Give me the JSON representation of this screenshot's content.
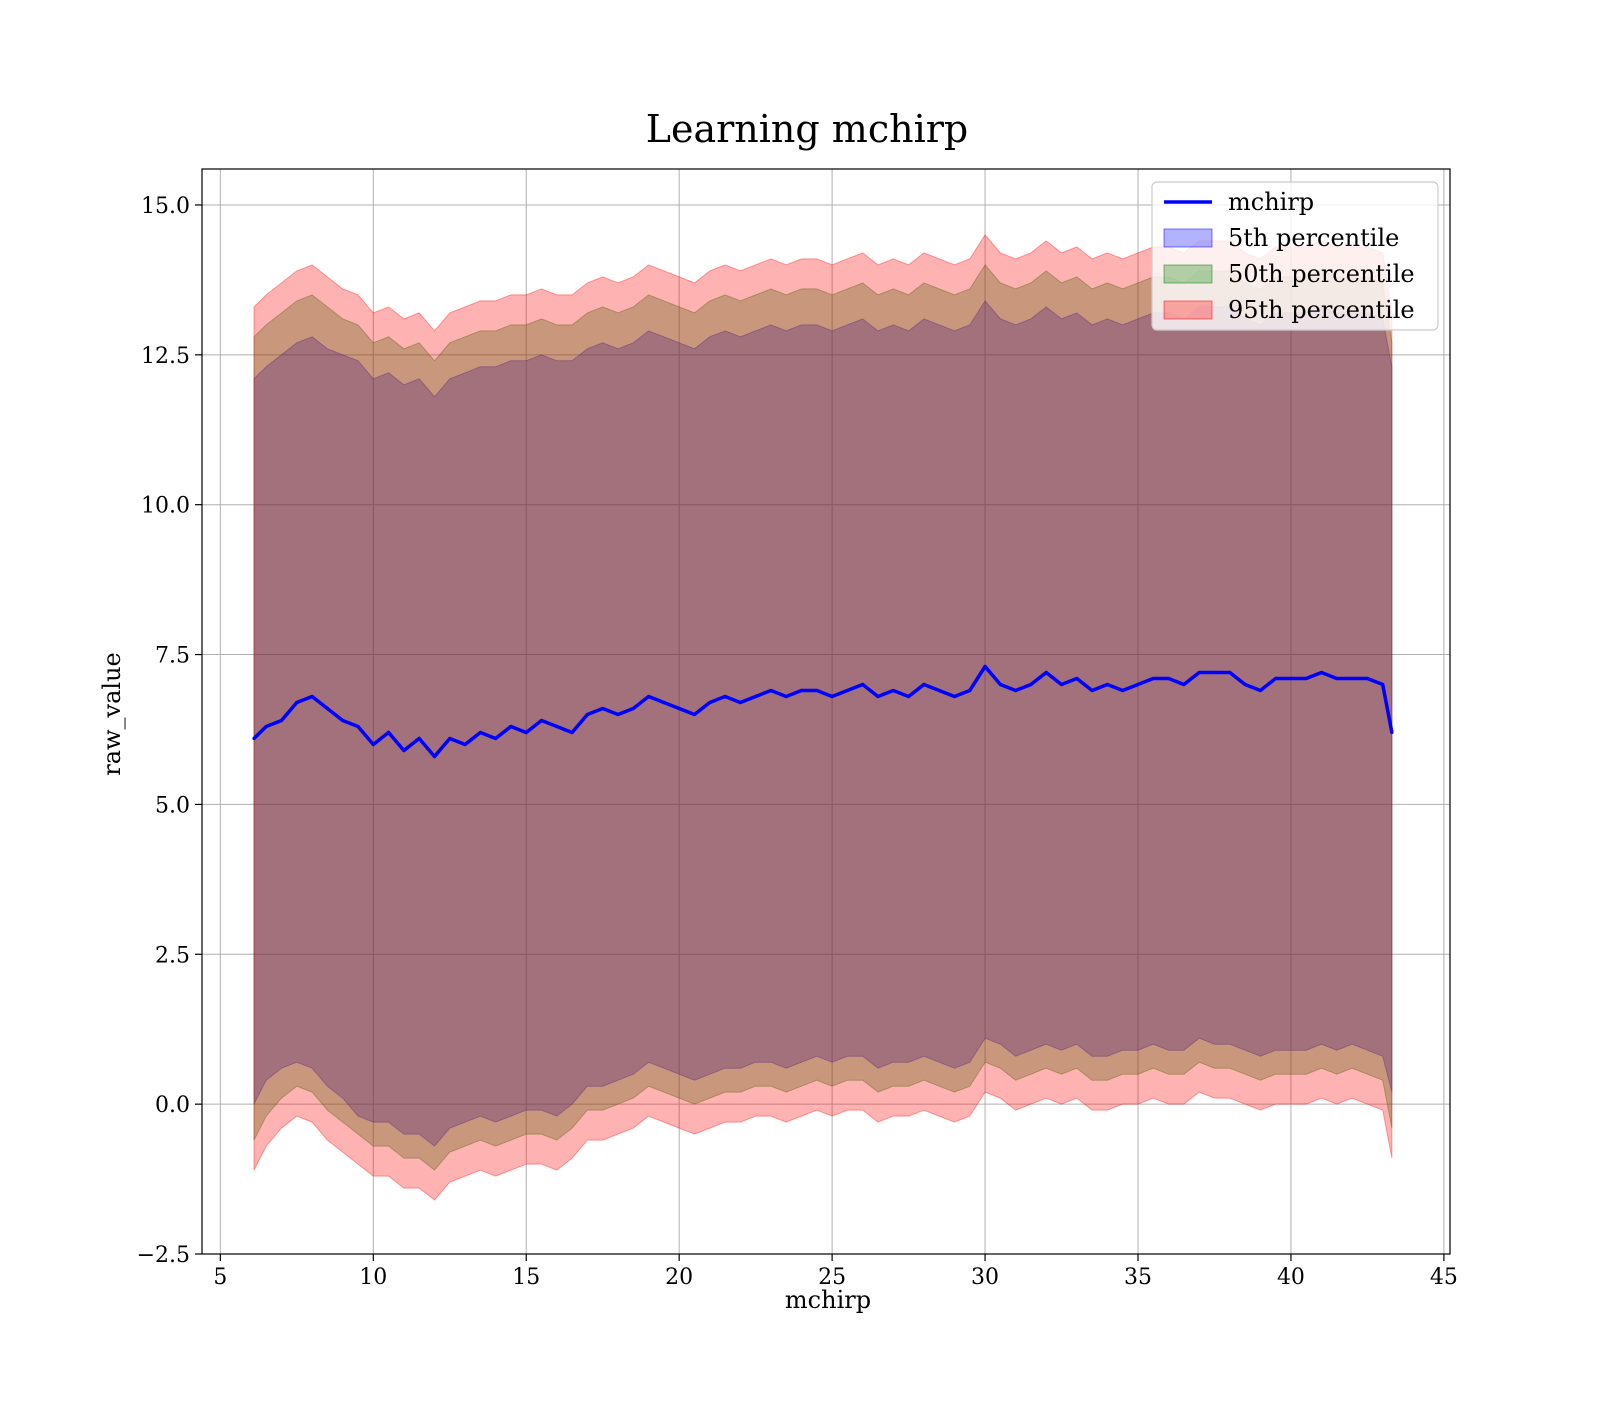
{
  "chart_data": {
    "type": "line",
    "title": "Learning mchirp",
    "xlabel": "mchirp",
    "ylabel": "raw_value",
    "xlim": [
      4.4,
      45.2
    ],
    "ylim": [
      -2.5,
      15.6
    ],
    "xticks": [
      5,
      10,
      15,
      20,
      25,
      30,
      35,
      40,
      45
    ],
    "xtick_labels": [
      "5",
      "10",
      "15",
      "20",
      "25",
      "30",
      "35",
      "40",
      "45"
    ],
    "yticks": [
      -2.5,
      0.0,
      2.5,
      5.0,
      7.5,
      10.0,
      12.5,
      15.0
    ],
    "ytick_labels": [
      "−2.5",
      "0.0",
      "2.5",
      "5.0",
      "7.5",
      "10.0",
      "12.5",
      "15.0"
    ],
    "grid": true,
    "legend_position": "top-right",
    "legend": [
      "mchirp",
      "5th percentile",
      "50th percentile",
      "95th percentile"
    ],
    "colors": {
      "line": "#0000ff",
      "band_5th": "#0000ff",
      "band_50th": "#008000",
      "band_95th": "#ff0000",
      "band_alpha": 0.3,
      "grid": "#b0b0b0"
    },
    "x": [
      6.1,
      6.5,
      7.0,
      7.5,
      8.0,
      8.5,
      9.0,
      9.5,
      10.0,
      10.5,
      11.0,
      11.5,
      12.0,
      12.5,
      13.0,
      13.5,
      14.0,
      14.5,
      15.0,
      15.5,
      16.0,
      16.5,
      17.0,
      17.5,
      18.0,
      18.5,
      19.0,
      19.5,
      20.0,
      20.5,
      21.0,
      21.5,
      22.0,
      22.5,
      23.0,
      23.5,
      24.0,
      24.5,
      25.0,
      25.5,
      26.0,
      26.5,
      27.0,
      27.5,
      28.0,
      28.5,
      29.0,
      29.5,
      30.0,
      30.5,
      31.0,
      31.5,
      32.0,
      32.5,
      33.0,
      33.5,
      34.0,
      34.5,
      35.0,
      35.5,
      36.0,
      36.5,
      37.0,
      37.5,
      38.0,
      38.5,
      39.0,
      39.5,
      40.0,
      40.5,
      41.0,
      41.5,
      42.0,
      42.5,
      43.0,
      43.3
    ],
    "series": [
      {
        "name": "mchirp",
        "values": [
          6.1,
          6.3,
          6.4,
          6.7,
          6.8,
          6.6,
          6.4,
          6.3,
          6.0,
          6.2,
          5.9,
          6.1,
          5.8,
          6.1,
          6.0,
          6.2,
          6.1,
          6.3,
          6.2,
          6.4,
          6.3,
          6.2,
          6.5,
          6.6,
          6.5,
          6.6,
          6.8,
          6.7,
          6.6,
          6.5,
          6.7,
          6.8,
          6.7,
          6.8,
          6.9,
          6.8,
          6.9,
          6.9,
          6.8,
          6.9,
          7.0,
          6.8,
          6.9,
          6.8,
          7.0,
          6.9,
          6.8,
          6.9,
          7.3,
          7.0,
          6.9,
          7.0,
          7.2,
          7.0,
          7.1,
          6.9,
          7.0,
          6.9,
          7.0,
          7.1,
          7.1,
          7.0,
          7.2,
          7.2,
          7.2,
          7.0,
          6.9,
          7.1,
          7.1,
          7.1,
          7.2,
          7.1,
          7.1,
          7.1,
          7.0,
          6.2
        ]
      },
      {
        "name": "5th percentile",
        "lower": [
          0.0,
          0.4,
          0.6,
          0.7,
          0.6,
          0.3,
          0.1,
          -0.2,
          -0.3,
          -0.3,
          -0.5,
          -0.5,
          -0.7,
          -0.4,
          -0.3,
          -0.2,
          -0.3,
          -0.2,
          -0.1,
          -0.1,
          -0.2,
          0.0,
          0.3,
          0.3,
          0.4,
          0.5,
          0.7,
          0.6,
          0.5,
          0.4,
          0.5,
          0.6,
          0.6,
          0.7,
          0.7,
          0.6,
          0.7,
          0.8,
          0.7,
          0.8,
          0.8,
          0.6,
          0.7,
          0.7,
          0.8,
          0.7,
          0.6,
          0.7,
          1.1,
          1.0,
          0.8,
          0.9,
          1.0,
          0.9,
          1.0,
          0.8,
          0.8,
          0.9,
          0.9,
          1.0,
          0.9,
          0.9,
          1.1,
          1.0,
          1.0,
          0.9,
          0.8,
          0.9,
          0.9,
          0.9,
          1.0,
          0.9,
          1.0,
          0.9,
          0.8,
          0.2
        ],
        "upper": [
          12.1,
          12.3,
          12.5,
          12.7,
          12.8,
          12.6,
          12.5,
          12.4,
          12.1,
          12.2,
          12.0,
          12.1,
          11.8,
          12.1,
          12.2,
          12.3,
          12.3,
          12.4,
          12.4,
          12.5,
          12.4,
          12.4,
          12.6,
          12.7,
          12.6,
          12.7,
          12.9,
          12.8,
          12.7,
          12.6,
          12.8,
          12.9,
          12.8,
          12.9,
          13.0,
          12.9,
          13.0,
          13.0,
          12.9,
          13.0,
          13.1,
          12.9,
          13.0,
          12.9,
          13.1,
          13.0,
          12.9,
          13.0,
          13.4,
          13.1,
          13.0,
          13.1,
          13.3,
          13.1,
          13.2,
          13.0,
          13.1,
          13.0,
          13.1,
          13.2,
          13.2,
          13.1,
          13.3,
          13.3,
          13.3,
          13.1,
          13.0,
          13.2,
          13.2,
          13.2,
          13.3,
          13.2,
          13.2,
          13.2,
          13.1,
          12.3
        ]
      },
      {
        "name": "50th percentile",
        "lower": [
          -0.6,
          -0.2,
          0.1,
          0.3,
          0.2,
          -0.1,
          -0.3,
          -0.5,
          -0.7,
          -0.7,
          -0.9,
          -0.9,
          -1.1,
          -0.8,
          -0.7,
          -0.6,
          -0.7,
          -0.6,
          -0.5,
          -0.5,
          -0.6,
          -0.4,
          -0.1,
          -0.1,
          0.0,
          0.1,
          0.3,
          0.2,
          0.1,
          0.0,
          0.1,
          0.2,
          0.2,
          0.3,
          0.3,
          0.2,
          0.3,
          0.4,
          0.3,
          0.4,
          0.4,
          0.2,
          0.3,
          0.3,
          0.4,
          0.3,
          0.2,
          0.3,
          0.7,
          0.6,
          0.4,
          0.5,
          0.6,
          0.5,
          0.6,
          0.4,
          0.4,
          0.5,
          0.5,
          0.6,
          0.5,
          0.5,
          0.7,
          0.6,
          0.6,
          0.5,
          0.4,
          0.5,
          0.5,
          0.5,
          0.6,
          0.5,
          0.6,
          0.5,
          0.4,
          -0.4
        ],
        "upper": [
          12.8,
          13.0,
          13.2,
          13.4,
          13.5,
          13.3,
          13.1,
          13.0,
          12.7,
          12.8,
          12.6,
          12.7,
          12.4,
          12.7,
          12.8,
          12.9,
          12.9,
          13.0,
          13.0,
          13.1,
          13.0,
          13.0,
          13.2,
          13.3,
          13.2,
          13.3,
          13.5,
          13.4,
          13.3,
          13.2,
          13.4,
          13.5,
          13.4,
          13.5,
          13.6,
          13.5,
          13.6,
          13.6,
          13.5,
          13.6,
          13.7,
          13.5,
          13.6,
          13.5,
          13.7,
          13.6,
          13.5,
          13.6,
          14.0,
          13.7,
          13.6,
          13.7,
          13.9,
          13.7,
          13.8,
          13.6,
          13.7,
          13.6,
          13.7,
          13.8,
          13.8,
          13.7,
          13.9,
          13.9,
          13.9,
          13.7,
          13.6,
          13.8,
          13.8,
          13.8,
          13.9,
          13.8,
          13.8,
          13.8,
          13.7,
          12.7
        ]
      },
      {
        "name": "95th percentile",
        "lower": [
          -1.1,
          -0.7,
          -0.4,
          -0.2,
          -0.3,
          -0.6,
          -0.8,
          -1.0,
          -1.2,
          -1.2,
          -1.4,
          -1.4,
          -1.6,
          -1.3,
          -1.2,
          -1.1,
          -1.2,
          -1.1,
          -1.0,
          -1.0,
          -1.1,
          -0.9,
          -0.6,
          -0.6,
          -0.5,
          -0.4,
          -0.2,
          -0.3,
          -0.4,
          -0.5,
          -0.4,
          -0.3,
          -0.3,
          -0.2,
          -0.2,
          -0.3,
          -0.2,
          -0.1,
          -0.2,
          -0.1,
          -0.1,
          -0.3,
          -0.2,
          -0.2,
          -0.1,
          -0.2,
          -0.3,
          -0.2,
          0.2,
          0.1,
          -0.1,
          0.0,
          0.1,
          0.0,
          0.1,
          -0.1,
          -0.1,
          0.0,
          0.0,
          0.1,
          0.0,
          0.0,
          0.2,
          0.1,
          0.1,
          0.0,
          -0.1,
          0.0,
          0.0,
          0.0,
          0.1,
          0.0,
          0.1,
          0.0,
          -0.1,
          -0.9
        ],
        "upper": [
          13.3,
          13.5,
          13.7,
          13.9,
          14.0,
          13.8,
          13.6,
          13.5,
          13.2,
          13.3,
          13.1,
          13.2,
          12.9,
          13.2,
          13.3,
          13.4,
          13.4,
          13.5,
          13.5,
          13.6,
          13.5,
          13.5,
          13.7,
          13.8,
          13.7,
          13.8,
          14.0,
          13.9,
          13.8,
          13.7,
          13.9,
          14.0,
          13.9,
          14.0,
          14.1,
          14.0,
          14.1,
          14.1,
          14.0,
          14.1,
          14.2,
          14.0,
          14.1,
          14.0,
          14.2,
          14.1,
          14.0,
          14.1,
          14.5,
          14.2,
          14.1,
          14.2,
          14.4,
          14.2,
          14.3,
          14.1,
          14.2,
          14.1,
          14.2,
          14.3,
          14.3,
          14.2,
          14.4,
          14.4,
          14.4,
          14.2,
          14.1,
          14.3,
          14.3,
          14.3,
          14.4,
          14.3,
          14.3,
          14.3,
          14.2,
          13.2
        ]
      }
    ]
  }
}
